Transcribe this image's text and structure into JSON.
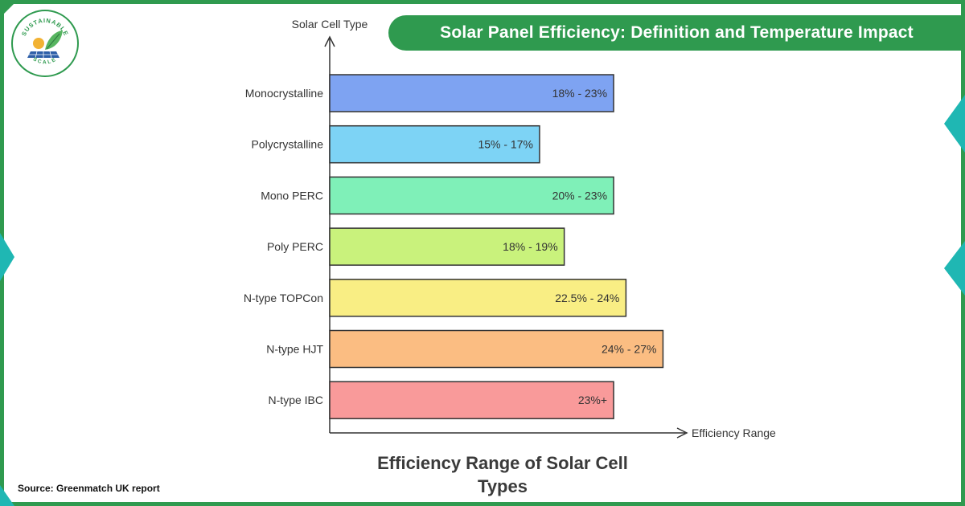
{
  "header": {
    "title": "Solar Panel Efficiency: Definition and Temperature Impact"
  },
  "logo": {
    "text_top": "SUSTAINABLE",
    "text_bottom": "SCALE"
  },
  "source": "Source: Greenmatch UK report",
  "colors": {
    "brand_green": "#2f9a4f",
    "accent_teal": "#1fb7b3"
  },
  "chart_data": {
    "type": "bar",
    "orientation": "horizontal",
    "title": "Efficiency Range of Solar Cell Types",
    "xlabel": "Efficiency Range",
    "ylabel": "Solar Cell Type",
    "grid": false,
    "legend": "none",
    "categories": [
      "Monocrystalline",
      "Polycrystalline",
      "Mono PERC",
      "Poly PERC",
      "N-type TOPCon",
      "N-type HJT",
      "N-type IBC"
    ],
    "value_labels": [
      "18% - 23%",
      "15% - 17%",
      "20% - 23%",
      "18% - 19%",
      "22.5% - 24%",
      "24% - 27%",
      "23%+"
    ],
    "values": [
      23,
      17,
      23,
      19,
      24,
      27,
      23
    ],
    "colors": [
      "#7ea3f2",
      "#7dd3f5",
      "#7ff0b8",
      "#c9f27c",
      "#f9ee84",
      "#fbbd82",
      "#f99a9a"
    ]
  }
}
